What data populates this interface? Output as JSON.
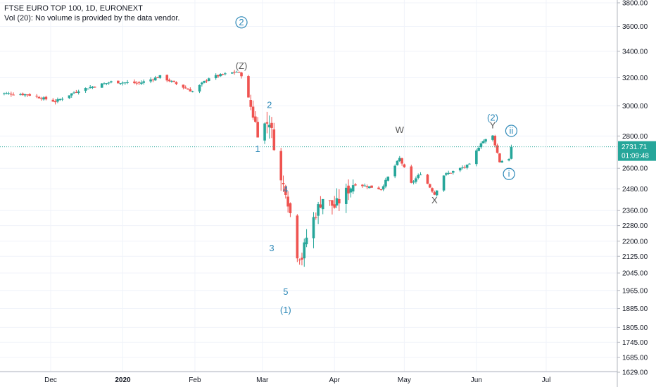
{
  "header": {
    "title": "FTSE EURO TOP 100, 1D, EURONEXT",
    "volume_note": "Vol (20): No volume is provided by the data vendor."
  },
  "colors": {
    "up": "#26a69a",
    "down": "#ef5350",
    "wave_blue": "#2e89b8",
    "wave_dark": "#555555",
    "price_line": "#26a69a",
    "axis_text": "#131722",
    "grid": "#f0f3fa"
  },
  "chart_data": {
    "type": "candlestick",
    "title": "FTSE EURO TOP 100, 1D, EURONEXT",
    "y_axis": {
      "position": "right",
      "scale": "log",
      "ylim": [
        1600,
        3900
      ],
      "ticks": [
        3800,
        3600,
        3400,
        3200,
        3000,
        2800,
        2600,
        2480,
        2360,
        2280,
        2200,
        2125,
        2045,
        1965,
        1885,
        1805,
        1745,
        1685,
        1629
      ],
      "tick_labels": [
        "3800.00",
        "3600.00",
        "3400.00",
        "3200.00",
        "3000.00",
        "2800.00",
        "2600.00",
        "2480.00",
        "2360.00",
        "2280.00",
        "2200.00",
        "2125.00",
        "2045.00",
        "1965.00",
        "1885.00",
        "1805.00",
        "1745.00",
        "1685.00",
        "1629.00"
      ]
    },
    "x_axis": {
      "tick_labels": [
        "Dec",
        "2020",
        "Feb",
        "Mar",
        "Apr",
        "May",
        "Jun",
        "Jul"
      ],
      "bold_labels": [
        "2020"
      ],
      "tick_dates": [
        "2019-12-01",
        "2020-01-01",
        "2020-02-01",
        "2020-03-01",
        "2020-04-01",
        "2020-05-01",
        "2020-06-01",
        "2020-07-01"
      ]
    },
    "grid": true,
    "last_price": {
      "value": 2731.71,
      "label": "2731.71",
      "countdown": "01:09:48"
    },
    "anchors": [
      {
        "date": "2019-11-07",
        "close": 3090
      },
      {
        "date": "2019-11-21",
        "close": 3080
      },
      {
        "date": "2019-12-03",
        "close": 3030
      },
      {
        "date": "2019-12-13",
        "close": 3110
      },
      {
        "date": "2019-12-27",
        "close": 3170
      },
      {
        "date": "2020-01-08",
        "close": 3160
      },
      {
        "date": "2020-01-17",
        "close": 3210
      },
      {
        "date": "2020-01-31",
        "close": 3100
      },
      {
        "date": "2020-02-07",
        "close": 3200
      },
      {
        "date": "2020-02-19",
        "close": 3245
      },
      {
        "date": "2020-02-21",
        "close": 3220
      },
      {
        "date": "2020-02-28",
        "close": 2830
      },
      {
        "date": "2020-03-04",
        "close": 2900
      },
      {
        "date": "2020-03-09",
        "close": 2520
      },
      {
        "date": "2020-03-11",
        "close": 2480
      },
      {
        "date": "2020-03-16",
        "close": 2140
      },
      {
        "date": "2020-03-18",
        "close": 2120
      },
      {
        "date": "2020-03-20",
        "close": 2220
      },
      {
        "date": "2020-03-24",
        "close": 2350
      },
      {
        "date": "2020-03-27",
        "close": 2430
      },
      {
        "date": "2020-04-01",
        "close": 2380
      },
      {
        "date": "2020-04-09",
        "close": 2510
      },
      {
        "date": "2020-04-21",
        "close": 2480
      },
      {
        "date": "2020-04-29",
        "close": 2660
      },
      {
        "date": "2020-05-04",
        "close": 2510
      },
      {
        "date": "2020-05-08",
        "close": 2570
      },
      {
        "date": "2020-05-14",
        "close": 2450
      },
      {
        "date": "2020-05-18",
        "close": 2560
      },
      {
        "date": "2020-05-29",
        "close": 2620
      },
      {
        "date": "2020-06-03",
        "close": 2760
      },
      {
        "date": "2020-06-08",
        "close": 2800
      },
      {
        "date": "2020-06-11",
        "close": 2640
      },
      {
        "date": "2020-06-15",
        "close": 2660
      },
      {
        "date": "2020-06-16",
        "close": 2731.71
      }
    ],
    "annotations": [
      {
        "text": "2",
        "circled": true,
        "date": "2020-02-21",
        "price": 3610,
        "style": "blue"
      },
      {
        "text": "(Z)",
        "date": "2020-02-21",
        "price": 3265,
        "style": "dark"
      },
      {
        "text": "2",
        "date": "2020-03-04",
        "price": 2985,
        "style": "blue"
      },
      {
        "text": "1",
        "date": "2020-02-28",
        "price": 2700,
        "style": "blue"
      },
      {
        "text": "4",
        "date": "2020-03-11",
        "price": 2460,
        "style": "blue"
      },
      {
        "text": "3",
        "date": "2020-03-05",
        "price": 2150,
        "style": "blue"
      },
      {
        "text": "5",
        "date": "2020-03-11",
        "price": 1945,
        "style": "blue"
      },
      {
        "text": "(1)",
        "date": "2020-03-11",
        "price": 1865,
        "style": "blue"
      },
      {
        "text": "W",
        "date": "2020-04-29",
        "price": 2820,
        "style": "dark"
      },
      {
        "text": "X",
        "date": "2020-05-14",
        "price": 2400,
        "style": "dark"
      },
      {
        "text": "(2)",
        "date": "2020-06-08",
        "price": 2900,
        "style": "blue"
      },
      {
        "text": "Y",
        "date": "2020-06-08",
        "price": 2850,
        "style": "dark"
      },
      {
        "text": "ii",
        "circled": true,
        "date": "2020-06-16",
        "price": 2815,
        "style": "blue"
      },
      {
        "text": "i",
        "circled": true,
        "date": "2020-06-15",
        "price": 2550,
        "style": "blue"
      }
    ]
  }
}
